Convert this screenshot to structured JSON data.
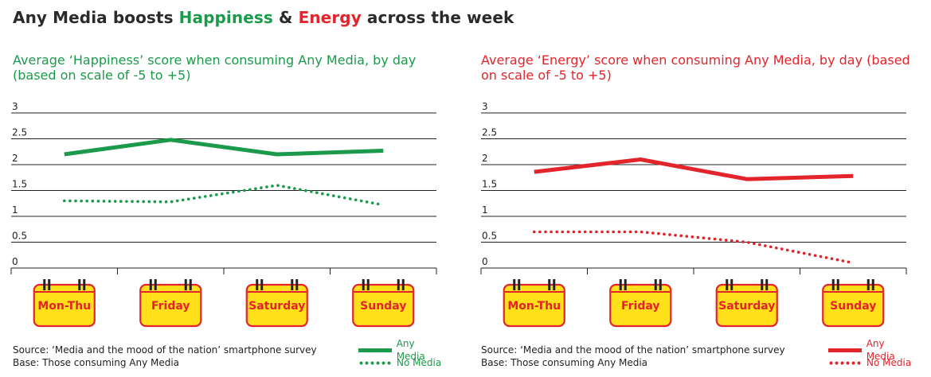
{
  "main_title": {
    "prefix": "Any Media boosts ",
    "word1": "Happiness",
    "middle": " & ",
    "word2": "Energy",
    "suffix": " across the week",
    "word1_color": "#1a9a4a",
    "word2_color": "#e3242b"
  },
  "chart_data": [
    {
      "type": "line",
      "title": "Average ‘Happiness’ score when consuming Any Media, by day (based on scale of -5 to +5)",
      "color": "#1a9a4a",
      "categories": [
        "Mon-Thu",
        "Friday",
        "Saturday",
        "Sunday"
      ],
      "ylim": [
        0,
        3
      ],
      "yticks": [
        "0",
        "0.5",
        "1",
        "1.5",
        "2",
        "2.5",
        "3"
      ],
      "grid": true,
      "legend_position": "bottom-right",
      "series": [
        {
          "name": "Any Media",
          "style": "solid",
          "values": [
            2.2,
            2.48,
            2.2,
            2.27
          ]
        },
        {
          "name": "No Media",
          "style": "dotted",
          "values": [
            1.3,
            1.28,
            1.6,
            1.22
          ]
        }
      ]
    },
    {
      "type": "line",
      "title": "Average ‘Energy’ score when consuming Any Media, by day (based on scale of -5 to +5)",
      "color": "#e3242b",
      "categories": [
        "Mon-Thu",
        "Friday",
        "Saturday",
        "Sunday"
      ],
      "ylim": [
        0,
        3
      ],
      "yticks": [
        "0",
        "0.5",
        "1",
        "1.5",
        "2",
        "2.5",
        "3"
      ],
      "grid": true,
      "legend_position": "bottom-right",
      "series": [
        {
          "name": "Any Media",
          "style": "solid",
          "values": [
            1.86,
            2.1,
            1.72,
            1.78
          ]
        },
        {
          "name": "No Media",
          "style": "dotted",
          "values": [
            0.7,
            0.7,
            0.5,
            0.1
          ]
        }
      ]
    }
  ],
  "footer": {
    "source": "Source: ‘Media and the mood of the nation’ smartphone survey",
    "base": "Base: Those consuming Any Media"
  },
  "calendar_colors": {
    "fill": "#ffe01b",
    "border": "#e3242b",
    "text": "#e3242b",
    "bar": "#222222"
  }
}
